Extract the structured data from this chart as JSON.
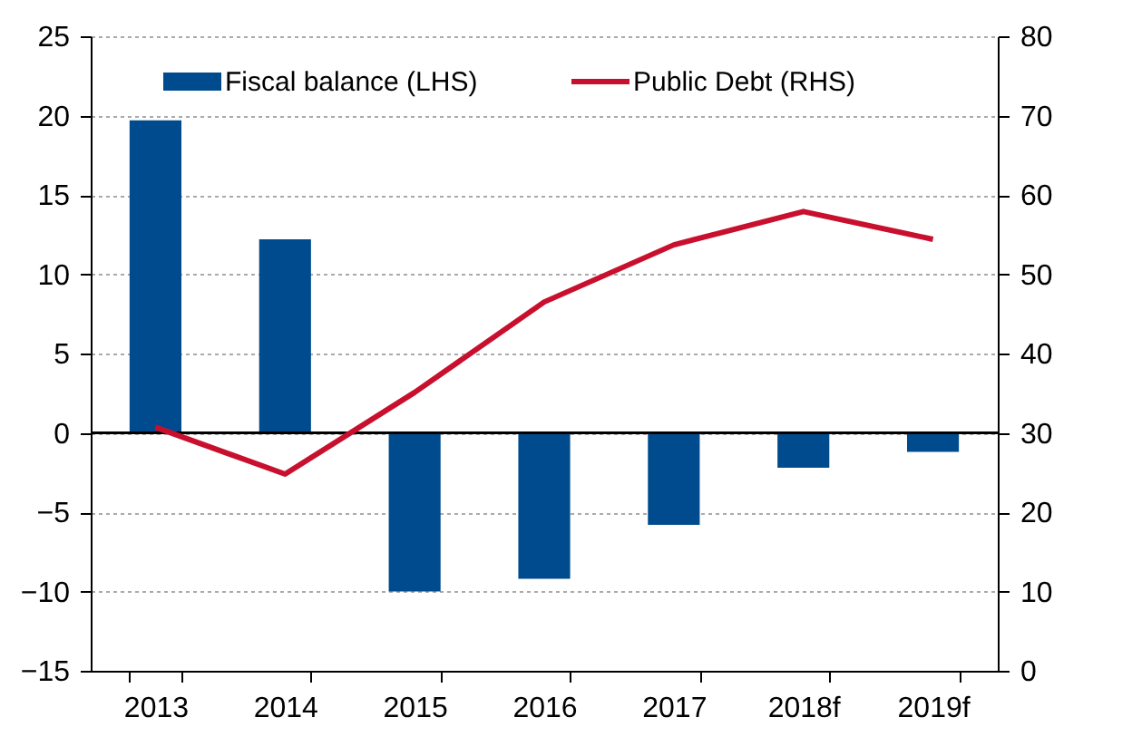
{
  "chart_data": {
    "type": "bar",
    "categories": [
      "2013",
      "2014",
      "2015",
      "2016",
      "2017",
      "2018f",
      "2019f"
    ],
    "series": [
      {
        "name": "Fiscal balance (LHS)",
        "color": "#004b8d",
        "values": [
          19.7,
          12.2,
          -10.0,
          -9.2,
          -5.8,
          -2.2,
          -1.2
        ]
      },
      {
        "name": "Public Debt (RHS)",
        "type": "line",
        "axis": "y2",
        "color": "#c8102e",
        "values": [
          30.7,
          24.8,
          35.1,
          46.5,
          53.7,
          57.9,
          54.4
        ]
      }
    ],
    "ylim": [
      -15,
      25
    ],
    "yticks": [
      -15,
      -10,
      -5,
      0,
      5,
      10,
      15,
      20,
      25
    ],
    "y2lim": [
      0,
      80
    ],
    "y2ticks": [
      0,
      10,
      20,
      30,
      40,
      50,
      60,
      70,
      80
    ],
    "grid": "y",
    "legend": "top left",
    "marker": "none",
    "line_style": "solid"
  }
}
